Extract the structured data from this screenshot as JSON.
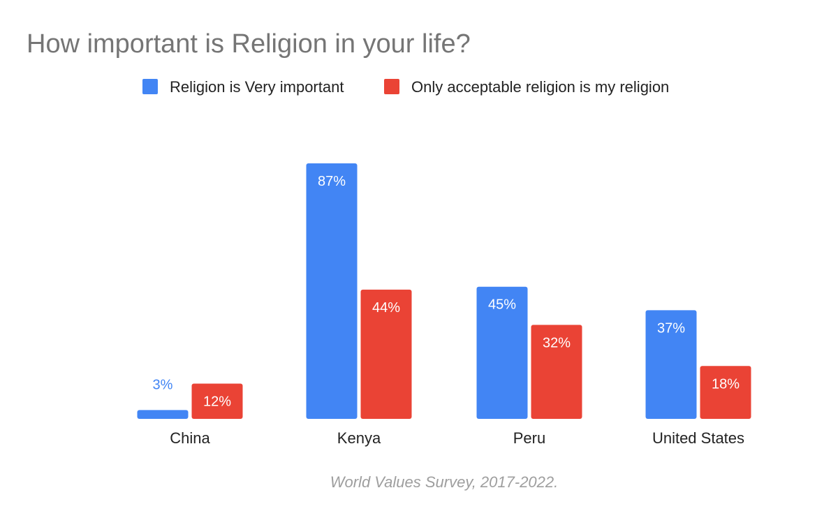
{
  "chart_data": {
    "type": "bar",
    "title": "How important is Religion in your life?",
    "categories": [
      "China",
      "Kenya",
      "Peru",
      "United States"
    ],
    "series": [
      {
        "name": "Religion is Very important",
        "color": "#4285F4",
        "values": [
          3,
          87,
          45,
          37
        ],
        "labels": [
          "3%",
          "87%",
          "45%",
          "37%"
        ]
      },
      {
        "name": "Only acceptable religion is my religion",
        "color": "#EA4335",
        "values": [
          12,
          44,
          32,
          18
        ],
        "labels": [
          "12%",
          "44%",
          "32%",
          "18%"
        ]
      }
    ],
    "ylim": [
      0,
      100
    ],
    "unit": "%",
    "grid": false,
    "legend_position": "top",
    "caption": "World Values Survey, 2017-2022."
  }
}
